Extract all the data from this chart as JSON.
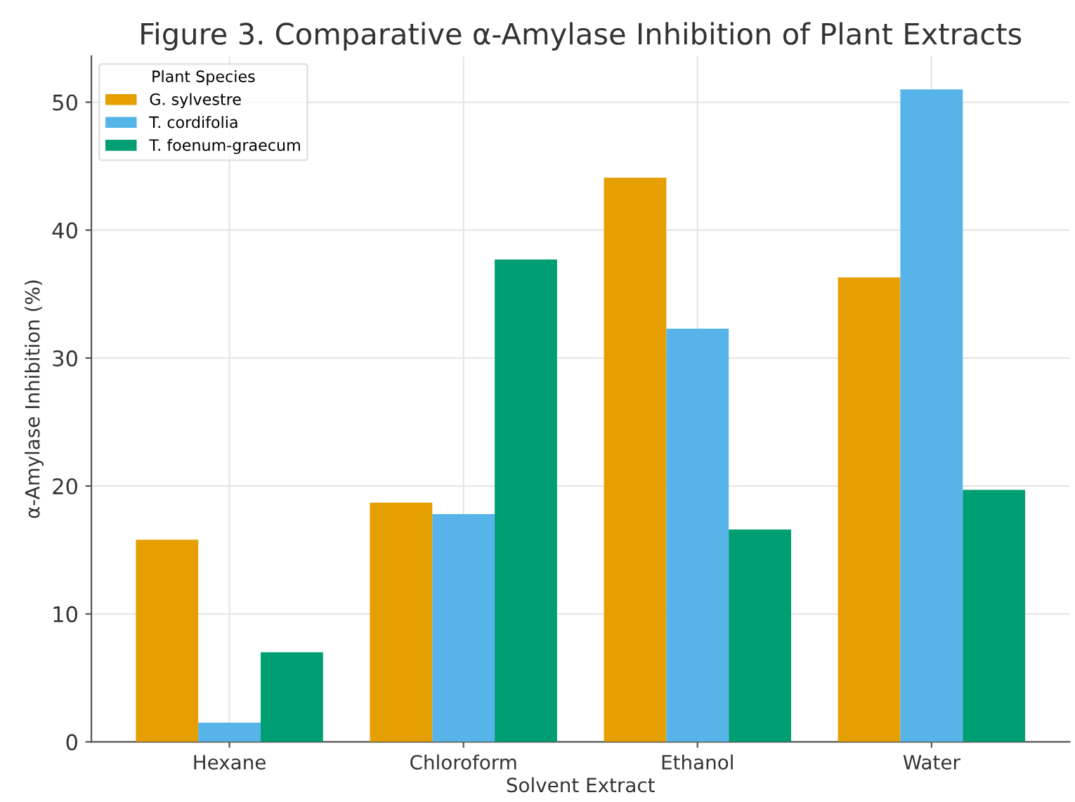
{
  "chart_data": {
    "type": "bar",
    "title": "Figure 3. Comparative α-Amylase Inhibition of Plant Extracts",
    "xlabel": "Solvent Extract",
    "ylabel": "α-Amylase Inhibition (%)",
    "legend_title": "Plant Species",
    "categories": [
      "Hexane",
      "Chloroform",
      "Ethanol",
      "Water"
    ],
    "series": [
      {
        "name": "G. sylvestre",
        "color": "#e69f00",
        "values": [
          15.8,
          18.7,
          44.1,
          36.3
        ]
      },
      {
        "name": "T. cordifolia",
        "color": "#56b4e9",
        "values": [
          1.5,
          17.8,
          32.3,
          51.0
        ]
      },
      {
        "name": "T. foenum-graecum",
        "color": "#009e73",
        "values": [
          7.0,
          37.7,
          16.6,
          19.7
        ]
      }
    ],
    "ylim": [
      0,
      53.6
    ],
    "yticks": [
      0,
      10,
      20,
      30,
      40,
      50
    ],
    "grid": true,
    "legend": "top left"
  }
}
